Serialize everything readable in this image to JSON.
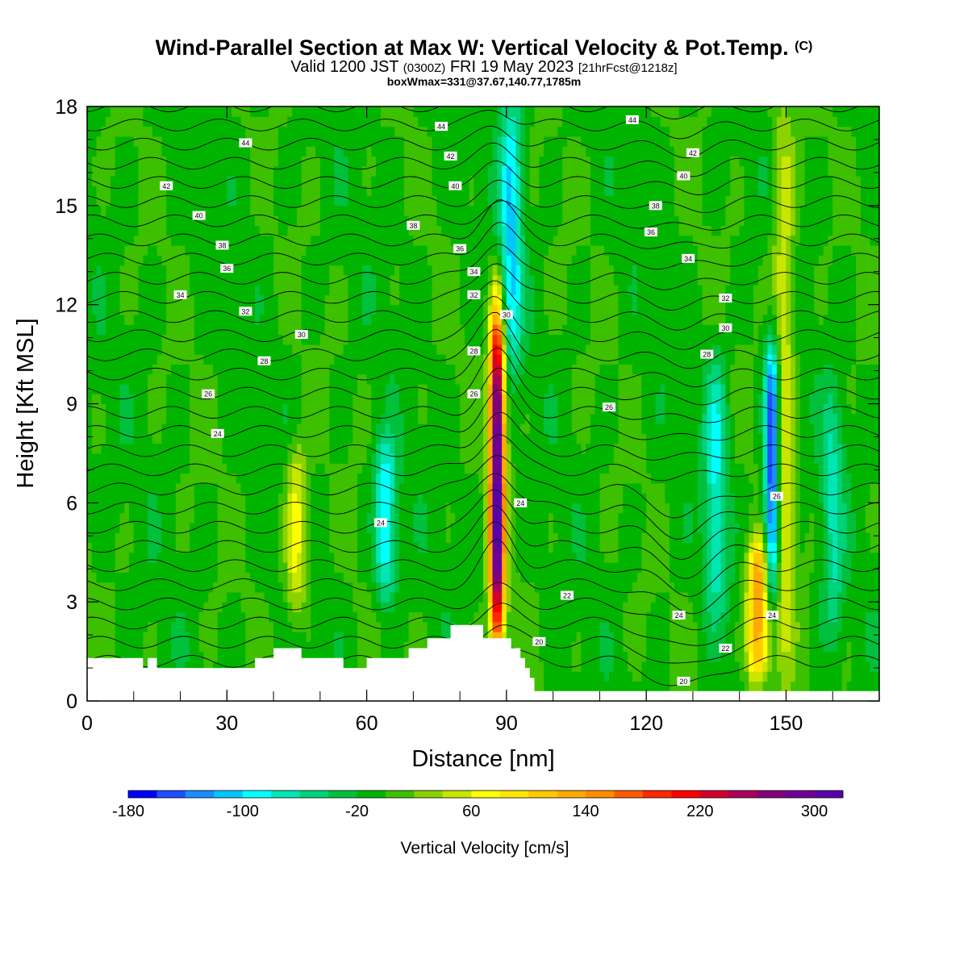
{
  "header": {
    "title_main": "Wind-Parallel Section at Max W: Vertical Velocity & Pot.Temp.",
    "title_copyright": "(C)",
    "valid_prefix": "Valid 1200 JST",
    "valid_utc": "(0300Z)",
    "valid_date": "FRI 19 May 2023",
    "forecast_info": "[21hrFcst@1218z]",
    "box_info": "boxWmax=331@37.67,140.77,1785m"
  },
  "chart_data": {
    "type": "heatmap",
    "xlabel": "Distance [nm]",
    "ylabel": "Height [Kft MSL]",
    "xlim": [
      0,
      170
    ],
    "ylim": [
      0,
      18
    ],
    "x_ticks": [
      0,
      30,
      60,
      90,
      120,
      150
    ],
    "y_ticks": [
      0,
      3,
      6,
      9,
      12,
      15,
      18
    ],
    "colorbar": {
      "label": "Vertical Velocity [cm/s]",
      "min": -180,
      "max": 320,
      "step": 20,
      "tick_values": [
        -180,
        -100,
        -20,
        60,
        140,
        220,
        300
      ],
      "colors": [
        "#0000ff",
        "#1f4fff",
        "#1a8dff",
        "#00c8ff",
        "#00ffff",
        "#00e6b4",
        "#00d278",
        "#00c03c",
        "#00b400",
        "#3cc000",
        "#8cd200",
        "#c8e600",
        "#ffff00",
        "#ffe600",
        "#ffc800",
        "#ffaa00",
        "#ff8c00",
        "#ff5a00",
        "#ff2800",
        "#ff0000",
        "#d2002d",
        "#aa005a",
        "#820078",
        "#6e0096",
        "#5a00aa"
      ]
    },
    "vertical_velocity_features": [
      {
        "kind": "updraft",
        "x": 88,
        "y_bottom": 2.0,
        "y_top": 11.5,
        "peak_value": 320
      },
      {
        "kind": "updraft",
        "x": 45,
        "y_bottom": 3.0,
        "y_top": 7.2,
        "peak_value": 70
      },
      {
        "kind": "downdraft",
        "x": 64,
        "y_bottom": 3.5,
        "y_top": 7.5,
        "peak_value": -100
      },
      {
        "kind": "downdraft",
        "x": 147,
        "y_bottom": 3.5,
        "y_top": 10.5,
        "peak_value": -180
      },
      {
        "kind": "updraft",
        "x": 144,
        "y_bottom": 1.0,
        "y_top": 4.5,
        "peak_value": 140
      },
      {
        "kind": "updraft",
        "x": 149.5,
        "y_bottom": 1.0,
        "y_top": 18.0,
        "peak_value": 60
      },
      {
        "kind": "downdraft",
        "x": 91,
        "y_bottom": 10.5,
        "y_top": 18.0,
        "peak_value": -100
      },
      {
        "kind": "downdraft",
        "x": 135,
        "y_bottom": 3.0,
        "y_top": 10.0,
        "peak_value": -80
      },
      {
        "kind": "downdraft",
        "x": 160,
        "y_bottom": 2.0,
        "y_top": 9.0,
        "peak_value": -60
      }
    ],
    "terrain_height_kft": [
      {
        "x": 0,
        "h": 1.3
      },
      {
        "x": 12,
        "h": 1.3
      },
      {
        "x": 12,
        "h": 1.0
      },
      {
        "x": 13,
        "h": 1.0
      },
      {
        "x": 13,
        "h": 1.3
      },
      {
        "x": 15,
        "h": 1.3
      },
      {
        "x": 15,
        "h": 1.0
      },
      {
        "x": 36,
        "h": 1.0
      },
      {
        "x": 36,
        "h": 1.3
      },
      {
        "x": 40,
        "h": 1.3
      },
      {
        "x": 40,
        "h": 1.6
      },
      {
        "x": 46,
        "h": 1.6
      },
      {
        "x": 46,
        "h": 1.3
      },
      {
        "x": 55,
        "h": 1.3
      },
      {
        "x": 55,
        "h": 1.0
      },
      {
        "x": 60,
        "h": 1.0
      },
      {
        "x": 60,
        "h": 1.3
      },
      {
        "x": 69,
        "h": 1.3
      },
      {
        "x": 69,
        "h": 1.6
      },
      {
        "x": 73,
        "h": 1.6
      },
      {
        "x": 73,
        "h": 1.9
      },
      {
        "x": 78,
        "h": 1.9
      },
      {
        "x": 78,
        "h": 2.3
      },
      {
        "x": 85,
        "h": 2.3
      },
      {
        "x": 85,
        "h": 1.9
      },
      {
        "x": 91,
        "h": 1.9
      },
      {
        "x": 91,
        "h": 1.6
      },
      {
        "x": 93,
        "h": 1.6
      },
      {
        "x": 93,
        "h": 1.3
      },
      {
        "x": 94,
        "h": 1.3
      },
      {
        "x": 94,
        "h": 1.0
      },
      {
        "x": 95,
        "h": 1.0
      },
      {
        "x": 95,
        "h": 0.7
      },
      {
        "x": 96,
        "h": 0.7
      },
      {
        "x": 96,
        "h": 0.3
      },
      {
        "x": 170,
        "h": 0.3
      }
    ],
    "potential_temperature_label_values": [
      "44",
      "44",
      "44",
      "42",
      "42",
      "42",
      "40",
      "40",
      "40",
      "38",
      "38",
      "38",
      "36",
      "36",
      "36",
      "34",
      "34",
      "34",
      "32",
      "32",
      "32",
      "30",
      "30",
      "30",
      "28",
      "28",
      "28",
      "26",
      "26",
      "26",
      "26",
      "24",
      "24",
      "24",
      "24",
      "24",
      "22",
      "22",
      "20",
      "20"
    ]
  }
}
